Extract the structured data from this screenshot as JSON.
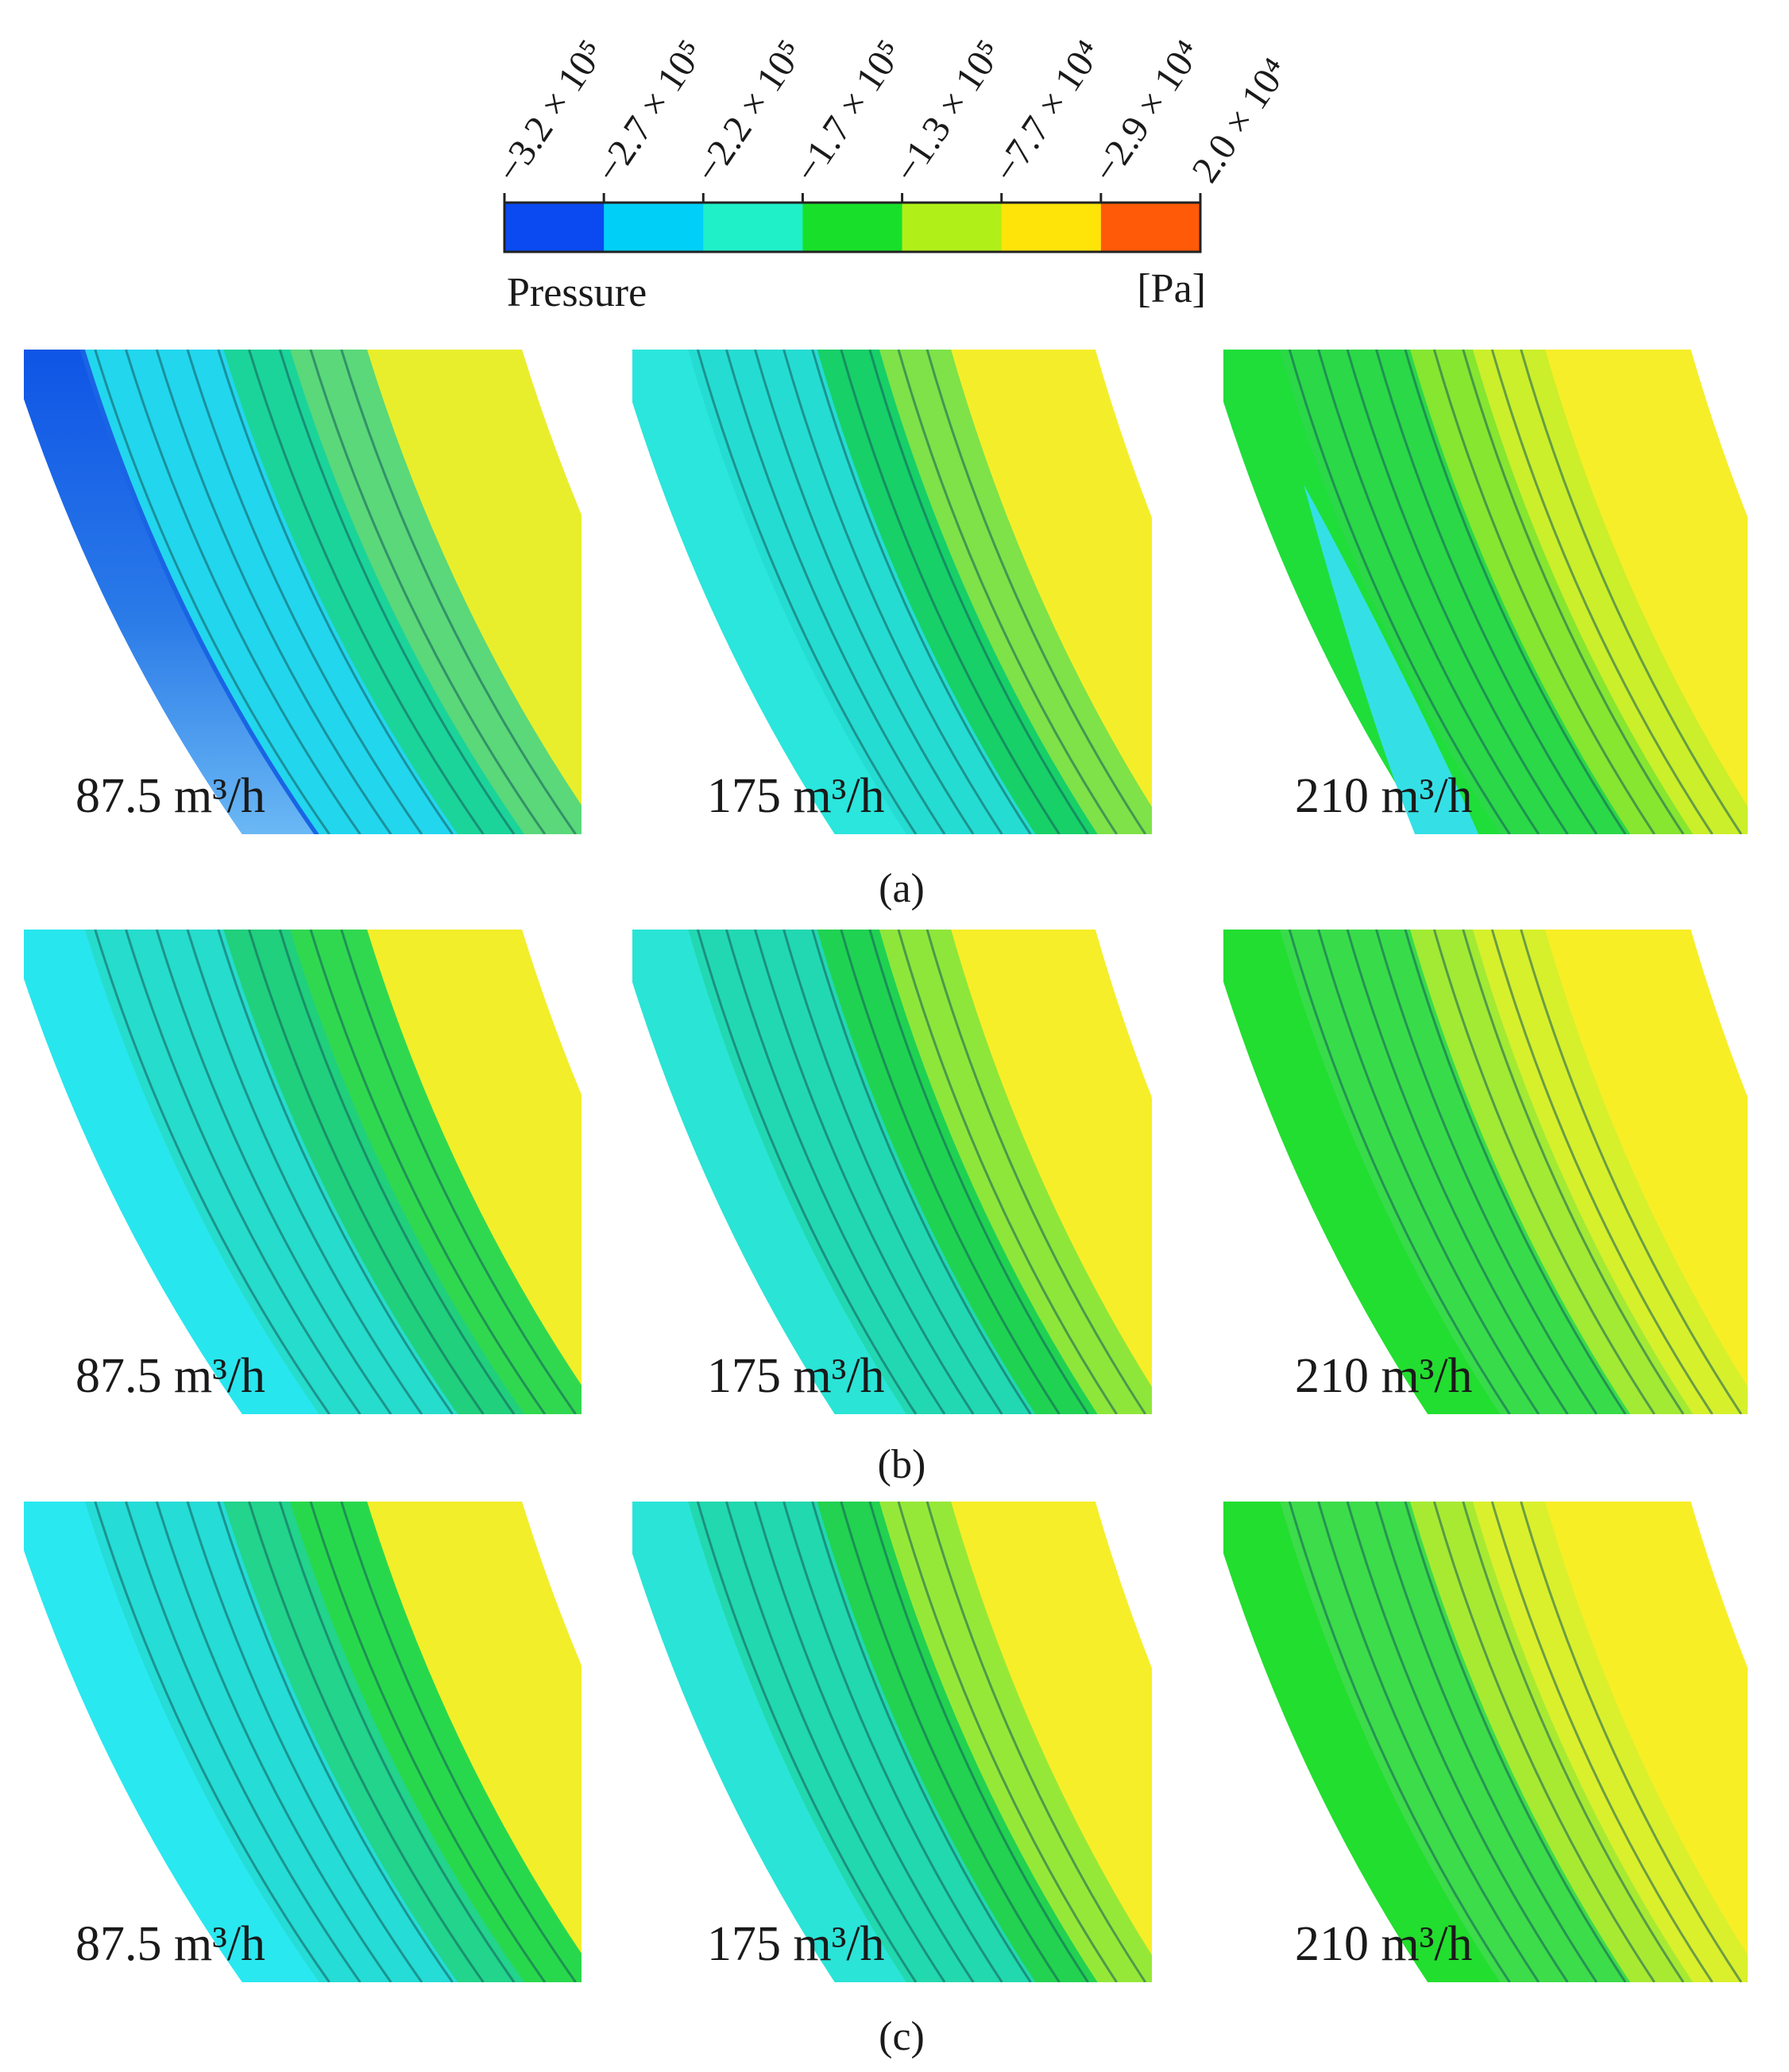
{
  "legend": {
    "title": "Pressure",
    "unit": "[Pa]",
    "ticks": [
      "−3.2 × 10⁵",
      "−2.7 × 10⁵",
      "−2.2 × 10⁵",
      "−1.7 × 10⁵",
      "−1.3 × 10⁵",
      "−7.7 × 10⁴",
      "−2.9 × 10⁴",
      "2.0 × 10⁴"
    ],
    "colors": [
      "#0a4af0",
      "#00d0f8",
      "#1ff0c8",
      "#18e02a",
      "#b0f018",
      "#ffe40a",
      "#ff5a08"
    ]
  },
  "rows": [
    {
      "caption": "(a)",
      "panels": [
        {
          "label": "87.5 m³/h",
          "bands": [
            "#1a64e4",
            "#22d6ee",
            "#1bd49a",
            "#5ad87a",
            "#e8ee2c"
          ],
          "overlay": "blue-fade"
        },
        {
          "label": "175 m³/h",
          "bands": [
            "#2ae6dc",
            "#25dcd2",
            "#17d068",
            "#7ee248",
            "#f4ee2a"
          ],
          "overlay": "none"
        },
        {
          "label": "210 m³/h",
          "bands": [
            "#1fde3a",
            "#2bd848",
            "#86e630",
            "#cbef2a",
            "#f6ee28"
          ],
          "overlay": "cyan-pocket"
        }
      ]
    },
    {
      "caption": "(b)",
      "panels": [
        {
          "label": "87.5 m³/h",
          "bands": [
            "#28e6ee",
            "#26dccc",
            "#20d07c",
            "#30d850",
            "#f2ee2a"
          ],
          "overlay": "none"
        },
        {
          "label": "175 m³/h",
          "bands": [
            "#2ae4d6",
            "#22d8b2",
            "#20d252",
            "#8ee63a",
            "#f6ee28"
          ],
          "overlay": "none"
        },
        {
          "label": "210 m³/h",
          "bands": [
            "#22de30",
            "#38dc4a",
            "#a2ea34",
            "#d6f02c",
            "#f8ee26"
          ],
          "overlay": "none"
        }
      ]
    },
    {
      "caption": "(c)",
      "panels": [
        {
          "label": "87.5 m³/h",
          "bands": [
            "#2ae8f0",
            "#25dcd6",
            "#22d48c",
            "#28d84c",
            "#f2ee2a"
          ],
          "overlay": "none"
        },
        {
          "label": "175 m³/h",
          "bands": [
            "#2ae4d8",
            "#22d8ae",
            "#22d250",
            "#96e838",
            "#f6ee28"
          ],
          "overlay": "none"
        },
        {
          "label": "210 m³/h",
          "bands": [
            "#22de2e",
            "#3ddc4a",
            "#a8ea32",
            "#daf02c",
            "#f8ee26"
          ],
          "overlay": "none"
        }
      ]
    }
  ]
}
